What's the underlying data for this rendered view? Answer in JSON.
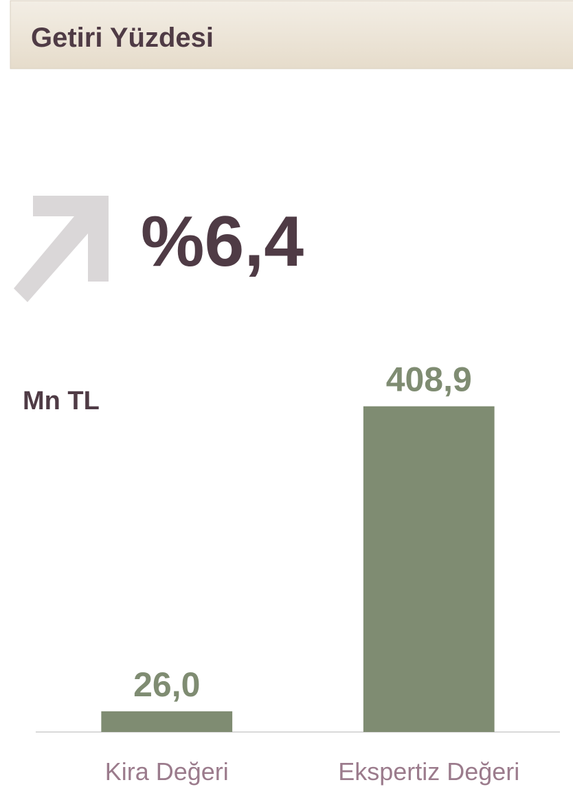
{
  "header": {
    "title": "Getiri Yüzdesi"
  },
  "kpi": "%6,4",
  "chart_data": {
    "type": "bar",
    "y_label": "Mn TL",
    "categories": [
      "Kira Değeri",
      "Ekspertiz Değeri"
    ],
    "values": [
      26.0,
      408.9
    ],
    "value_labels": [
      "26,0",
      "408,9"
    ],
    "color": "#7f8c72",
    "ylim": [
      0,
      450
    ]
  }
}
